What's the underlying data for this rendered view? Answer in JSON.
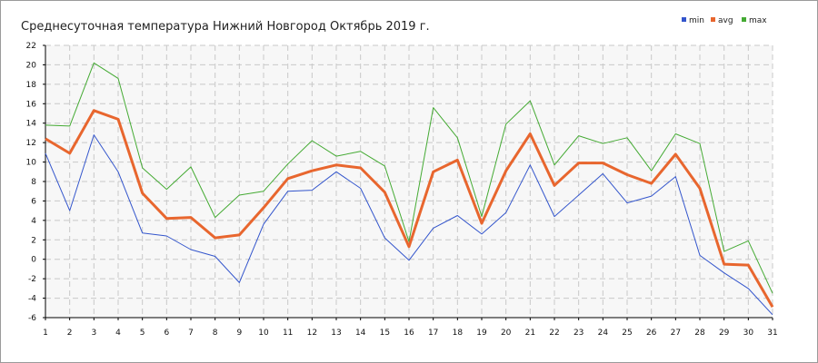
{
  "chart_data": {
    "type": "line",
    "title": "Среднесуточная температура Нижний Новгород  Октябрь 2019 г.",
    "xlabel": "",
    "ylabel": "",
    "x": [
      1,
      2,
      3,
      4,
      5,
      6,
      7,
      8,
      9,
      10,
      11,
      12,
      13,
      14,
      15,
      16,
      17,
      18,
      19,
      20,
      21,
      22,
      23,
      24,
      25,
      26,
      27,
      28,
      29,
      30,
      31
    ],
    "ylim": [
      -6,
      22
    ],
    "yticks": [
      -6,
      -4,
      -2,
      0,
      2,
      4,
      6,
      8,
      10,
      12,
      14,
      16,
      18,
      20,
      22
    ],
    "grid": true,
    "legend_position": "top-right",
    "series": [
      {
        "name": "min",
        "color": "#3355cc",
        "values": [
          10.9,
          5.0,
          12.8,
          9.0,
          2.7,
          2.4,
          1.0,
          0.3,
          -2.4,
          3.6,
          7.0,
          7.1,
          9.0,
          7.3,
          2.2,
          -0.1,
          3.2,
          4.5,
          2.6,
          4.8,
          9.7,
          4.4,
          6.6,
          8.8,
          5.8,
          6.5,
          8.5,
          0.4,
          -1.4,
          -3.0,
          -5.7
        ]
      },
      {
        "name": "avg",
        "color": "#e8662e",
        "values": [
          12.4,
          10.9,
          15.3,
          14.4,
          6.8,
          4.2,
          4.3,
          2.2,
          2.5,
          5.3,
          8.3,
          9.1,
          9.7,
          9.4,
          6.9,
          1.3,
          9.0,
          10.2,
          3.7,
          9.1,
          12.9,
          7.6,
          9.9,
          9.9,
          8.7,
          7.8,
          10.8,
          7.3,
          -0.5,
          -0.6,
          -4.9
        ]
      },
      {
        "name": "max",
        "color": "#44aa33",
        "values": [
          13.8,
          13.7,
          20.2,
          18.6,
          9.4,
          7.2,
          9.5,
          4.3,
          6.6,
          7.0,
          9.8,
          12.2,
          10.6,
          11.1,
          9.6,
          1.8,
          15.6,
          12.5,
          4.4,
          13.9,
          16.3,
          9.7,
          12.7,
          11.9,
          12.5,
          9.1,
          12.9,
          11.9,
          0.8,
          1.9,
          -3.5
        ]
      }
    ]
  }
}
